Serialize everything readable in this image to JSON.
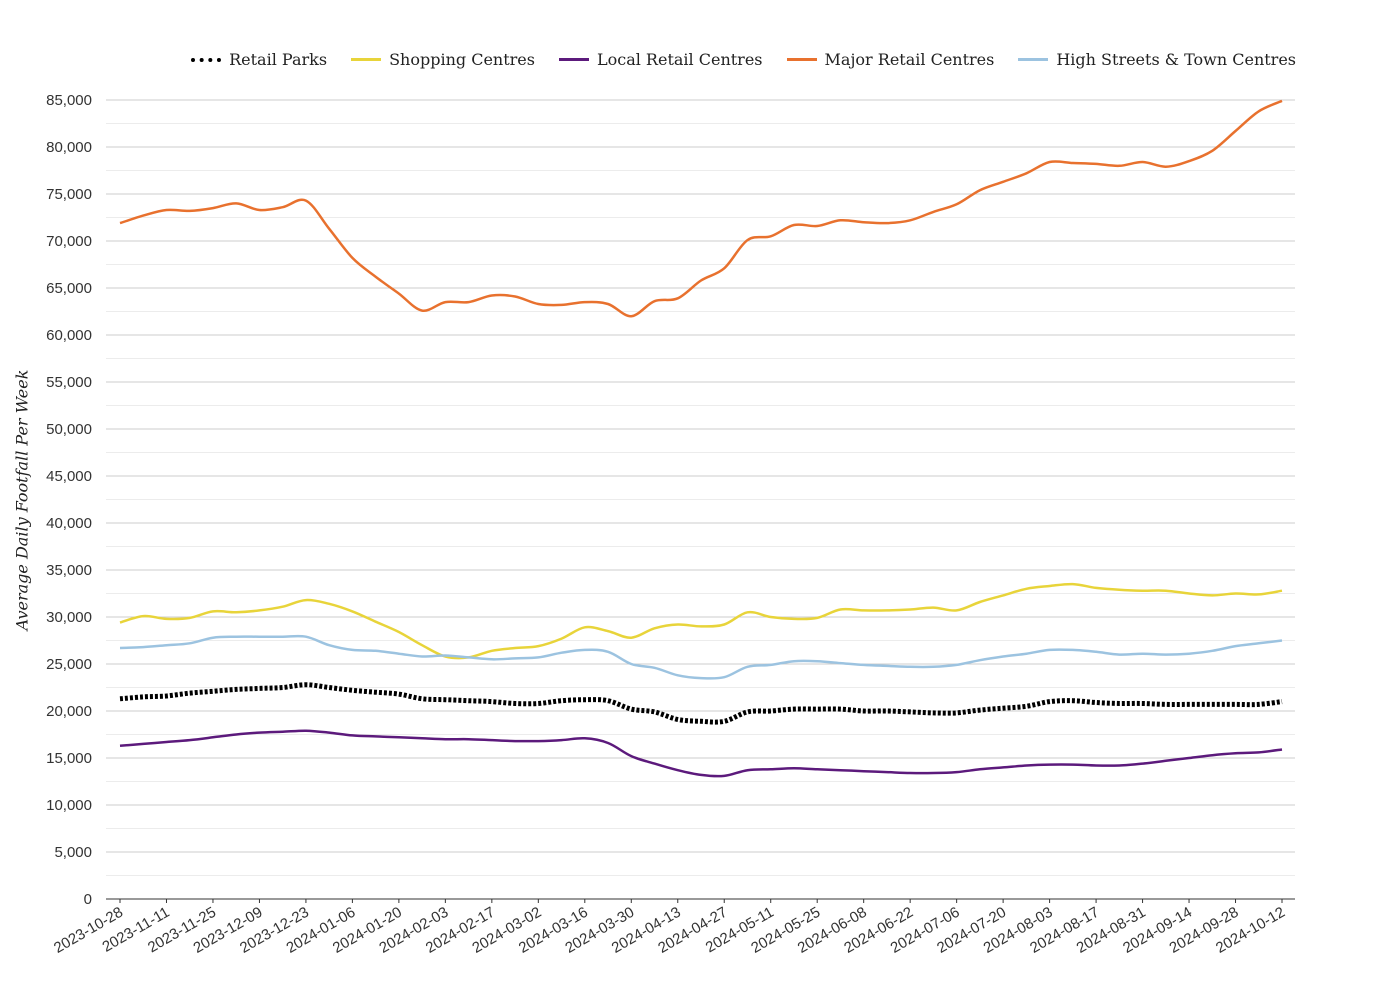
{
  "chart_data": {
    "type": "line",
    "title": "",
    "xlabel": "",
    "ylabel": "Average Daily Footfall Per Week",
    "ylim": [
      0,
      85000
    ],
    "y_ticks": [
      0,
      5000,
      10000,
      15000,
      20000,
      25000,
      30000,
      35000,
      40000,
      45000,
      50000,
      55000,
      60000,
      65000,
      70000,
      75000,
      80000,
      85000
    ],
    "y_tick_labels": [
      "0",
      "5,000",
      "10,000",
      "15,000",
      "20,000",
      "25,000",
      "30,000",
      "35,000",
      "40,000",
      "45,000",
      "50,000",
      "55,000",
      "60,000",
      "65,000",
      "70,000",
      "75,000",
      "80,000",
      "85,000"
    ],
    "x_tick_labels": [
      "2023-10-28",
      "2023-11-11",
      "2023-11-25",
      "2023-12-09",
      "2023-12-23",
      "2024-01-06",
      "2024-01-20",
      "2024-02-03",
      "2024-02-17",
      "2024-03-02",
      "2024-03-16",
      "2024-03-30",
      "2024-04-13",
      "2024-04-27",
      "2024-05-11",
      "2024-05-25",
      "2024-06-08",
      "2024-06-22",
      "2024-07-06",
      "2024-07-20",
      "2024-08-03",
      "2024-08-17",
      "2024-08-31",
      "2024-09-14",
      "2024-09-28",
      "2024-10-12"
    ],
    "x": [
      "2023-10-28",
      "2023-11-04",
      "2023-11-11",
      "2023-11-18",
      "2023-11-25",
      "2023-12-02",
      "2023-12-09",
      "2023-12-16",
      "2023-12-23",
      "2023-12-30",
      "2024-01-06",
      "2024-01-13",
      "2024-01-20",
      "2024-01-27",
      "2024-02-03",
      "2024-02-10",
      "2024-02-17",
      "2024-02-24",
      "2024-03-02",
      "2024-03-09",
      "2024-03-16",
      "2024-03-23",
      "2024-03-30",
      "2024-04-06",
      "2024-04-13",
      "2024-04-20",
      "2024-04-27",
      "2024-05-04",
      "2024-05-11",
      "2024-05-18",
      "2024-05-25",
      "2024-06-01",
      "2024-06-08",
      "2024-06-15",
      "2024-06-22",
      "2024-06-29",
      "2024-07-06",
      "2024-07-13",
      "2024-07-20",
      "2024-07-27",
      "2024-08-03",
      "2024-08-10",
      "2024-08-17",
      "2024-08-24",
      "2024-08-31",
      "2024-09-07",
      "2024-09-14",
      "2024-09-21",
      "2024-09-28",
      "2024-10-05",
      "2024-10-12"
    ],
    "legend_position": "top-right",
    "grid": true,
    "series": [
      {
        "name": "Retail Parks",
        "color": "#000000",
        "style": "dotted",
        "values": [
          21300,
          21500,
          21600,
          21900,
          22100,
          22300,
          22400,
          22500,
          22800,
          22500,
          22200,
          22000,
          21800,
          21300,
          21200,
          21100,
          21000,
          20800,
          20800,
          21100,
          21200,
          21100,
          20200,
          19900,
          19100,
          18900,
          18900,
          19900,
          20000,
          20200,
          20200,
          20200,
          20000,
          20000,
          19900,
          19800,
          19800,
          20100,
          20300,
          20500,
          21000,
          21100,
          20900,
          20800,
          20800,
          20700,
          20700,
          20700,
          20700,
          20700,
          21000
        ]
      },
      {
        "name": "Shopping Centres",
        "color": "#e8d43a",
        "style": "solid",
        "values": [
          29400,
          30100,
          29800,
          29900,
          30600,
          30500,
          30700,
          31100,
          31800,
          31400,
          30600,
          29500,
          28400,
          27000,
          25800,
          25700,
          26400,
          26700,
          26900,
          27700,
          28900,
          28500,
          27800,
          28800,
          29200,
          29000,
          29200,
          30500,
          30000,
          29800,
          29900,
          30800,
          30700,
          30700,
          30800,
          31000,
          30700,
          31600,
          32300,
          33000,
          33300,
          33500,
          33100,
          32900,
          32800,
          32800,
          32500,
          32300,
          32500,
          32400,
          32800
        ]
      },
      {
        "name": "Local Retail Centres",
        "color": "#5c1a7c",
        "style": "solid",
        "values": [
          16300,
          16500,
          16700,
          16900,
          17200,
          17500,
          17700,
          17800,
          17900,
          17700,
          17400,
          17300,
          17200,
          17100,
          17000,
          17000,
          16900,
          16800,
          16800,
          16900,
          17100,
          16600,
          15200,
          14400,
          13700,
          13200,
          13100,
          13700,
          13800,
          13900,
          13800,
          13700,
          13600,
          13500,
          13400,
          13400,
          13500,
          13800,
          14000,
          14200,
          14300,
          14300,
          14200,
          14200,
          14400,
          14700,
          15000,
          15300,
          15500,
          15600,
          15900
        ]
      },
      {
        "name": "Major Retail Centres",
        "color": "#e8712e",
        "style": "solid",
        "values": [
          71900,
          72700,
          73300,
          73200,
          73500,
          74000,
          73300,
          73600,
          74300,
          71300,
          68200,
          66200,
          64400,
          62600,
          63500,
          63500,
          64200,
          64100,
          63300,
          63200,
          63500,
          63300,
          62000,
          63600,
          63900,
          65800,
          67100,
          70100,
          70500,
          71700,
          71600,
          72200,
          72000,
          71900,
          72200,
          73100,
          73900,
          75400,
          76300,
          77200,
          78400,
          78300,
          78200,
          78000,
          78400,
          77900,
          78500,
          79600,
          81700,
          83800,
          84900
        ]
      },
      {
        "name": "High Streets & Town Centres",
        "color": "#9cc3e0",
        "style": "solid",
        "values": [
          26700,
          26800,
          27000,
          27200,
          27800,
          27900,
          27900,
          27900,
          27900,
          27000,
          26500,
          26400,
          26100,
          25800,
          25900,
          25700,
          25500,
          25600,
          25700,
          26200,
          26500,
          26300,
          25000,
          24600,
          23800,
          23500,
          23600,
          24700,
          24900,
          25300,
          25300,
          25100,
          24900,
          24800,
          24700,
          24700,
          24900,
          25400,
          25800,
          26100,
          26500,
          26500,
          26300,
          26000,
          26100,
          26000,
          26100,
          26400,
          26900,
          27200,
          27500
        ]
      }
    ]
  }
}
